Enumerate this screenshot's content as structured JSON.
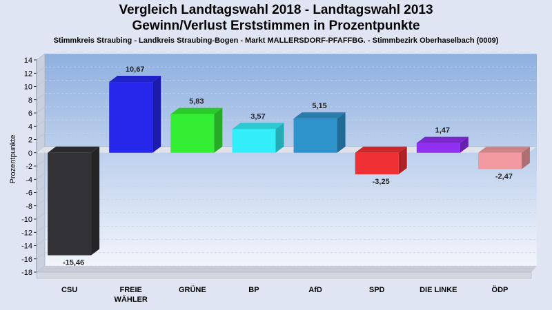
{
  "header": {
    "title_line1": "Vergleich Landtagswahl 2018 - Landtagswahl 2013",
    "title_line2": "Gewinn/Verlust Erststimmen in Prozentpunkte",
    "subtitle": "Stimmkreis Straubing - Landkreis Straubing-Bogen - Markt MALLERSDORF-PFAFFBG. - Stimmbezirk Oberhaselbach (0009)"
  },
  "chart_data": {
    "type": "bar",
    "title": "Vergleich Landtagswahl 2018 - Landtagswahl 2013 / Gewinn/Verlust Erststimmen in Prozentpunkte",
    "ylabel": "Prozentpunkte",
    "ylim": [
      -18,
      14
    ],
    "yticks": [
      14,
      12,
      10,
      8,
      6,
      4,
      2,
      0,
      -2,
      -4,
      -6,
      -8,
      -10,
      -12,
      -14,
      -16,
      -18
    ],
    "grid": true,
    "categories": [
      {
        "lines": [
          "CSU"
        ]
      },
      {
        "lines": [
          "FREIE",
          "WÄHLER"
        ]
      },
      {
        "lines": [
          "GRÜNE"
        ]
      },
      {
        "lines": [
          "BP"
        ]
      },
      {
        "lines": [
          "AfD"
        ]
      },
      {
        "lines": [
          "SPD"
        ]
      },
      {
        "lines": [
          "DIE LINKE"
        ]
      },
      {
        "lines": [
          "ÖDP"
        ]
      }
    ],
    "values": [
      -15.46,
      10.67,
      5.83,
      3.57,
      5.15,
      -3.25,
      1.47,
      -2.47
    ],
    "value_labels": [
      "-15,46",
      "10,67",
      "5,83",
      "3,57",
      "5,15",
      "-3,25",
      "1,47",
      "-2,47"
    ],
    "colors": [
      "#323236",
      "#2727ec",
      "#33ee33",
      "#33eef8",
      "#2f93cc",
      "#ef3135",
      "#8f2ff0",
      "#f29a9f"
    ]
  }
}
